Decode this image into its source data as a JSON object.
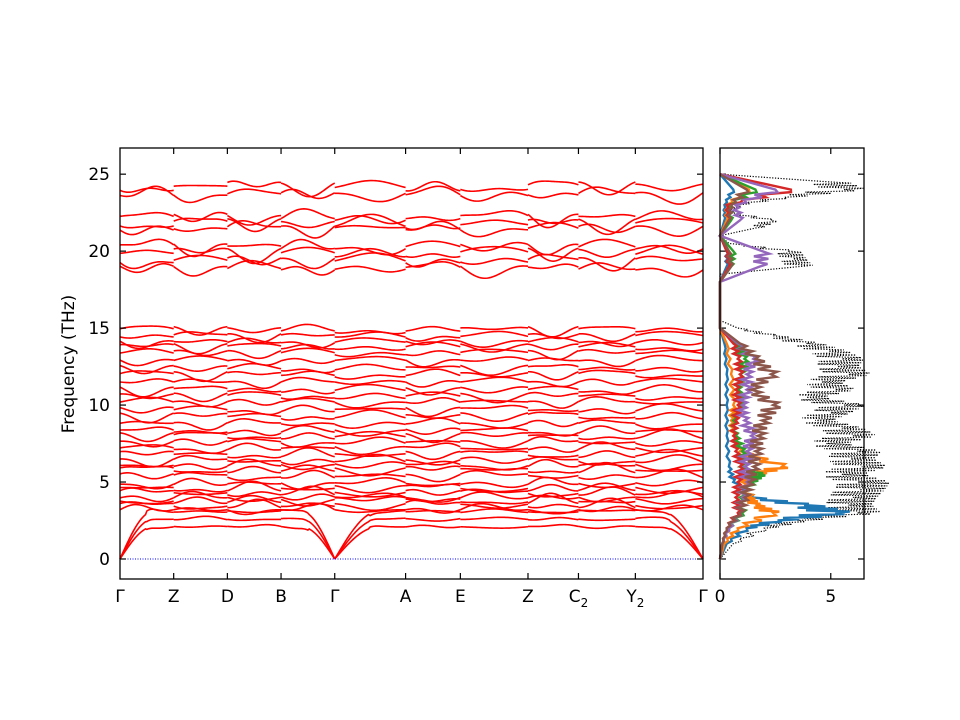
{
  "chart_data": [
    {
      "type": "line",
      "title": "",
      "xlabel": "",
      "ylabel": "Frequency (THz)",
      "ylim": [
        -1.3,
        26.7
      ],
      "yticks": [
        0,
        5,
        10,
        15,
        20,
        25
      ],
      "kpoints": [
        {
          "label": "Γ",
          "sub": "",
          "pos": 0.0
        },
        {
          "label": "Z",
          "sub": "",
          "pos": 0.5
        },
        {
          "label": "D",
          "sub": "",
          "pos": 1.0
        },
        {
          "label": "B",
          "sub": "",
          "pos": 1.5
        },
        {
          "label": "Γ",
          "sub": "",
          "pos": 2.0
        },
        {
          "label": "A",
          "sub": "",
          "pos": 2.66
        },
        {
          "label": "E",
          "sub": "",
          "pos": 3.17
        },
        {
          "label": "Z",
          "sub": "",
          "pos": 3.8
        },
        {
          "label": "C",
          "sub": "2",
          "pos": 4.27
        },
        {
          "label": "Y",
          "sub": "2",
          "pos": 4.8
        },
        {
          "label": "Γ",
          "sub": "",
          "pos": 5.43
        }
      ],
      "xlim": [
        0,
        5.43
      ],
      "acoustic_top": [
        2.1,
        2.6,
        3.1
      ],
      "optical_bands": [
        3.2,
        3.5,
        3.8,
        4.0,
        4.3,
        4.6,
        4.9,
        5.4,
        5.8,
        6.1,
        6.4,
        6.8,
        7.2,
        7.6,
        8.0,
        8.3,
        8.8,
        9.3,
        9.7,
        10.2,
        10.6,
        11.0,
        11.5,
        12.0,
        12.4,
        12.9,
        13.4,
        13.8,
        14.1,
        14.5,
        14.9,
        18.9,
        19.4,
        19.9,
        20.3,
        21.5,
        21.8,
        22.2,
        23.7,
        24.2
      ],
      "band_color": "#ff0000",
      "zero_line_color": "#0000ff"
    },
    {
      "type": "line",
      "title": "",
      "xlabel": "",
      "ylabel": "",
      "xlim": [
        0,
        6.5
      ],
      "xticks": [
        0,
        5
      ],
      "ylim": [
        -1.3,
        26.7
      ],
      "series": [
        {
          "key": "total",
          "color": "#000000",
          "style": "dotted",
          "freq": [
            0,
            1,
            2,
            2.5,
            3,
            3.5,
            4,
            4.5,
            5,
            5.5,
            6,
            6.5,
            7,
            7.5,
            8,
            8.5,
            9,
            9.5,
            10,
            10.5,
            11,
            11.5,
            12,
            12.5,
            13,
            13.5,
            14,
            14.5,
            15,
            15.5,
            16,
            18.5,
            19,
            19.5,
            20,
            20.5,
            21,
            21.5,
            22,
            22.5,
            23,
            23.5,
            24,
            24.5,
            25
          ],
          "dos": [
            0,
            0.6,
            2.0,
            3.5,
            6.2,
            5.8,
            6.0,
            6.3,
            6.5,
            5.5,
            6.4,
            5.9,
            6.2,
            4.8,
            6.0,
            5.5,
            4.3,
            5.0,
            5.6,
            3.9,
            5.2,
            4.6,
            5.8,
            5.3,
            5.5,
            4.9,
            3.9,
            2.4,
            0.8,
            0,
            0,
            0,
            3.6,
            3.3,
            3.1,
            0.4,
            0,
            1.6,
            2.3,
            0.5,
            0.8,
            2.9,
            5.6,
            4.9,
            0
          ]
        },
        {
          "key": "p1",
          "color": "#1f77b4",
          "style": "solid",
          "freq": [
            0,
            1,
            2,
            2.5,
            3,
            3.5,
            4,
            5,
            6,
            8,
            10,
            12,
            14,
            15,
            18,
            19,
            20,
            21,
            22,
            23,
            24,
            25
          ],
          "dos": [
            0,
            0.3,
            1.2,
            2.6,
            5.2,
            3.8,
            1.4,
            0.6,
            0.4,
            0.3,
            0.3,
            0.3,
            0.2,
            0,
            0,
            0.3,
            0.3,
            0,
            0.2,
            0.2,
            0.6,
            0
          ]
        },
        {
          "key": "p2",
          "color": "#ff7f0e",
          "style": "solid",
          "freq": [
            0,
            1,
            2,
            3,
            3.5,
            4,
            5,
            5.5,
            6,
            7,
            8,
            9,
            10,
            12,
            14,
            15,
            18,
            19,
            20,
            21,
            22,
            23,
            24,
            25
          ],
          "dos": [
            0,
            0.2,
            0.8,
            2.4,
            1.6,
            1.3,
            1.0,
            1.6,
            2.8,
            0.9,
            0.6,
            0.5,
            0.6,
            0.5,
            0.3,
            0,
            0,
            0.4,
            0.4,
            0,
            0.3,
            0.3,
            1.3,
            0
          ]
        },
        {
          "key": "p3",
          "color": "#2ca02c",
          "style": "solid",
          "freq": [
            0,
            1,
            2,
            3,
            4,
            5,
            5.5,
            6,
            7,
            8,
            9,
            10,
            11,
            12,
            13,
            14,
            15,
            18,
            19,
            20,
            21,
            22,
            23,
            24,
            25
          ],
          "dos": [
            0,
            0.1,
            0.4,
            1.0,
            0.9,
            1.4,
            1.8,
            0.9,
            1.0,
            0.7,
            0.6,
            0.9,
            0.8,
            0.9,
            1.1,
            0.7,
            0,
            0,
            0.5,
            0.6,
            0,
            0.5,
            0.4,
            1.6,
            0
          ]
        },
        {
          "key": "p4",
          "color": "#d62728",
          "style": "solid",
          "freq": [
            0,
            1,
            2,
            3,
            4,
            5,
            6,
            7,
            8,
            9,
            10,
            11,
            12,
            13,
            14,
            15,
            18,
            19,
            20,
            21,
            22,
            23,
            24,
            25
          ],
          "dos": [
            0,
            0.1,
            0.3,
            0.8,
            0.7,
            0.8,
            0.9,
            0.7,
            0.6,
            0.7,
            0.8,
            0.7,
            0.9,
            0.8,
            0.6,
            0,
            0,
            0.4,
            0.3,
            0,
            0.4,
            0.3,
            3.2,
            0
          ]
        },
        {
          "key": "p5",
          "color": "#9467bd",
          "style": "solid",
          "freq": [
            0,
            1,
            2,
            3,
            4,
            5,
            6,
            7,
            8,
            9,
            10,
            11,
            12,
            13,
            14,
            15,
            18,
            19,
            20,
            21,
            22,
            23,
            24,
            25
          ],
          "dos": [
            0,
            0.1,
            0.4,
            0.9,
            1.0,
            1.2,
            1.1,
            1.2,
            1.4,
            1.1,
            1.0,
            1.2,
            1.2,
            1.5,
            0.8,
            0,
            0,
            1.8,
            1.9,
            0,
            0.9,
            0.7,
            2.5,
            0
          ]
        },
        {
          "key": "p6",
          "color": "#8c564b",
          "style": "solid",
          "freq": [
            0,
            1,
            2,
            3,
            4,
            5,
            6,
            7,
            8,
            9,
            10,
            11,
            12,
            13,
            14,
            15,
            18,
            19,
            20,
            21,
            22,
            23,
            24,
            25
          ],
          "dos": [
            0,
            0.1,
            0.3,
            0.9,
            1.1,
            1.3,
            1.5,
            1.6,
            1.7,
            1.9,
            2.4,
            1.4,
            2.3,
            1.6,
            0.9,
            0,
            0,
            0.5,
            0.4,
            0,
            0.4,
            0.5,
            1.2,
            0
          ]
        }
      ]
    }
  ]
}
